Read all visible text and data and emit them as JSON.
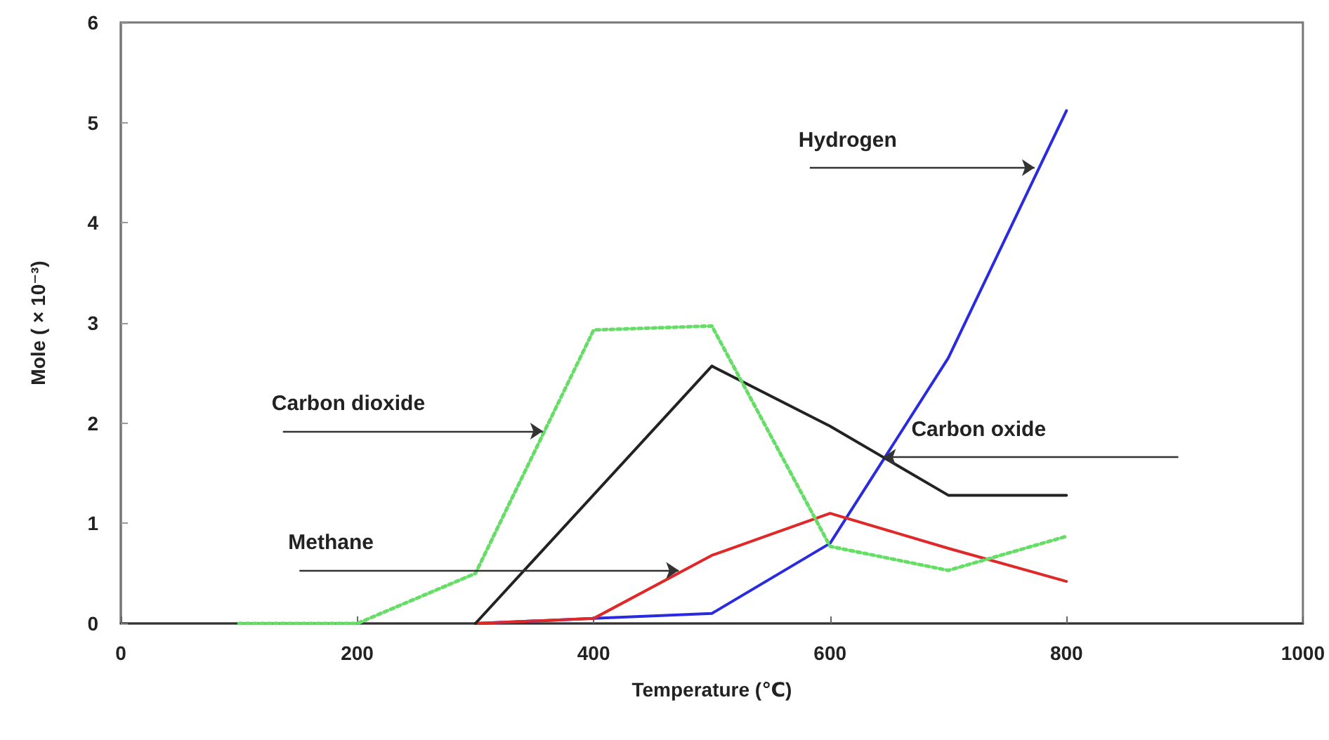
{
  "chart_data": {
    "type": "line",
    "xlabel": "Temperature (℃)",
    "ylabel": "Mole ( × 10⁻³)",
    "xlim": [
      0,
      1000
    ],
    "xticks": [
      0,
      200,
      400,
      600,
      800,
      1000
    ],
    "ylim": [
      0,
      6
    ],
    "yticks": [
      0,
      1,
      2,
      3,
      4,
      5,
      6
    ],
    "grid": false,
    "marker": "none",
    "series": [
      {
        "color": "#2a2ae0",
        "line_style": "solid",
        "x": [
          300,
          400,
          500,
          600,
          700,
          800
        ],
        "values": [
          0,
          0.05,
          0.1,
          0.8,
          2.65,
          5.12
        ]
      },
      {
        "color": "#e02828",
        "line_style": "solid",
        "x": [
          300,
          400,
          500,
          600,
          700,
          800
        ],
        "values": [
          0,
          0.05,
          0.68,
          1.1,
          0.75,
          0.42
        ]
      },
      {
        "color": "#222222",
        "line_style": "solid",
        "x": [
          300,
          500,
          600,
          700,
          800
        ],
        "values": [
          0,
          2.57,
          1.97,
          1.28,
          1.28
        ]
      },
      {
        "color": "#66dd66",
        "line_style": "dotted",
        "x": [
          100,
          200,
          300,
          400,
          500,
          600,
          700,
          800
        ],
        "values": [
          0,
          0,
          0.5,
          2.93,
          2.97,
          0.77,
          0.53,
          0.87
        ]
      }
    ],
    "annotations": [
      {
        "text": "Hydrogen",
        "x": 773,
        "y": 4.55
      },
      {
        "text": "Carbon dioxide",
        "x": 357,
        "y": 1.92
      },
      {
        "text": "Carbon oxide",
        "x": 645,
        "y": 1.66
      },
      {
        "text": "Methane",
        "x": 472,
        "y": 0.53
      }
    ]
  }
}
